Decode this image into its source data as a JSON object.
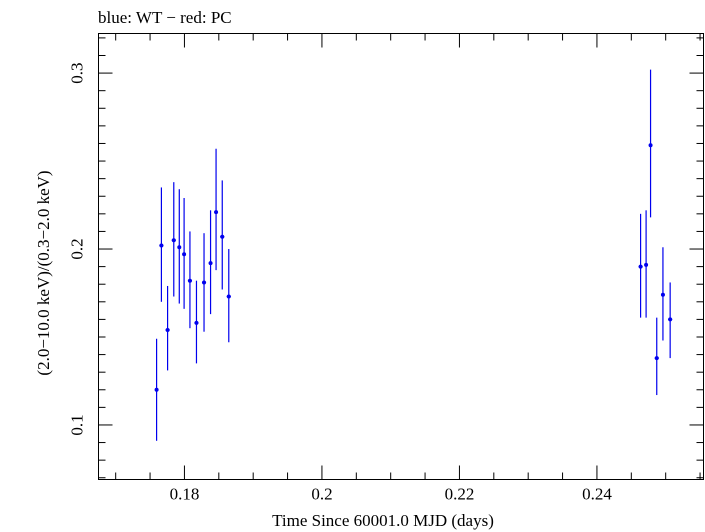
{
  "chart_data": {
    "type": "scatter",
    "title": "blue: WT − red: PC",
    "xlabel": "Time Since 60001.0 MJD (days)",
    "ylabel": "(2.0−10.0 keV)/(0.3−2.0 keV)",
    "xlim": [
      0.1675,
      0.2555
    ],
    "ylim": [
      0.069,
      0.3225
    ],
    "xticks_major": [
      0.18,
      0.2,
      0.22,
      0.24
    ],
    "xtick_labels": [
      "0.18",
      "0.2",
      "0.22",
      "0.24"
    ],
    "xticks_minor": [
      0.17,
      0.175,
      0.185,
      0.19,
      0.195,
      0.205,
      0.21,
      0.215,
      0.225,
      0.23,
      0.235,
      0.245,
      0.25,
      0.255
    ],
    "yticks_major": [
      0.1,
      0.2,
      0.3
    ],
    "ytick_labels": [
      "0.1",
      "0.2",
      "0.3"
    ],
    "yticks_minor": [
      0.07,
      0.08,
      0.09,
      0.11,
      0.12,
      0.13,
      0.14,
      0.15,
      0.16,
      0.17,
      0.18,
      0.19,
      0.21,
      0.22,
      0.23,
      0.24,
      0.25,
      0.26,
      0.27,
      0.28,
      0.29,
      0.31,
      0.32
    ],
    "grid": false,
    "legend": "none",
    "series": [
      {
        "color": "#0000ee",
        "points": [
          {
            "x": 0.17595,
            "y": 0.12,
            "xerr": 0.00015,
            "ylo": 0.091,
            "yhi": 0.149
          },
          {
            "x": 0.17665,
            "y": 0.202,
            "xerr": 0.0003,
            "ylo": 0.17,
            "yhi": 0.235
          },
          {
            "x": 0.17755,
            "y": 0.154,
            "xerr": 0.0003,
            "ylo": 0.131,
            "yhi": 0.179
          },
          {
            "x": 0.17845,
            "y": 0.205,
            "xerr": 0.0003,
            "ylo": 0.173,
            "yhi": 0.238
          },
          {
            "x": 0.17925,
            "y": 0.201,
            "xerr": 0.00025,
            "ylo": 0.169,
            "yhi": 0.234
          },
          {
            "x": 0.17995,
            "y": 0.197,
            "xerr": 0.00025,
            "ylo": 0.166,
            "yhi": 0.229
          },
          {
            "x": 0.1808,
            "y": 0.182,
            "xerr": 0.0003,
            "ylo": 0.155,
            "yhi": 0.21
          },
          {
            "x": 0.18175,
            "y": 0.158,
            "xerr": 0.0003,
            "ylo": 0.135,
            "yhi": 0.182
          },
          {
            "x": 0.18285,
            "y": 0.181,
            "xerr": 0.0003,
            "ylo": 0.153,
            "yhi": 0.209
          },
          {
            "x": 0.1838,
            "y": 0.192,
            "xerr": 0.00025,
            "ylo": 0.163,
            "yhi": 0.222
          },
          {
            "x": 0.1846,
            "y": 0.221,
            "xerr": 0.00025,
            "ylo": 0.188,
            "yhi": 0.257
          },
          {
            "x": 0.1855,
            "y": 0.207,
            "xerr": 0.0003,
            "ylo": 0.177,
            "yhi": 0.239
          },
          {
            "x": 0.18645,
            "y": 0.173,
            "xerr": 0.0003,
            "ylo": 0.147,
            "yhi": 0.2
          },
          {
            "x": 0.24635,
            "y": 0.19,
            "xerr": 0.0003,
            "ylo": 0.161,
            "yhi": 0.22
          },
          {
            "x": 0.24715,
            "y": 0.191,
            "xerr": 0.00025,
            "ylo": 0.161,
            "yhi": 0.222
          },
          {
            "x": 0.2478,
            "y": 0.259,
            "xerr": 0.0002,
            "ylo": 0.218,
            "yhi": 0.302
          },
          {
            "x": 0.2487,
            "y": 0.138,
            "xerr": 0.0003,
            "ylo": 0.117,
            "yhi": 0.161
          },
          {
            "x": 0.2496,
            "y": 0.174,
            "xerr": 0.00025,
            "ylo": 0.148,
            "yhi": 0.201
          },
          {
            "x": 0.25065,
            "y": 0.16,
            "xerr": 0.0003,
            "ylo": 0.138,
            "yhi": 0.181
          }
        ]
      }
    ]
  }
}
